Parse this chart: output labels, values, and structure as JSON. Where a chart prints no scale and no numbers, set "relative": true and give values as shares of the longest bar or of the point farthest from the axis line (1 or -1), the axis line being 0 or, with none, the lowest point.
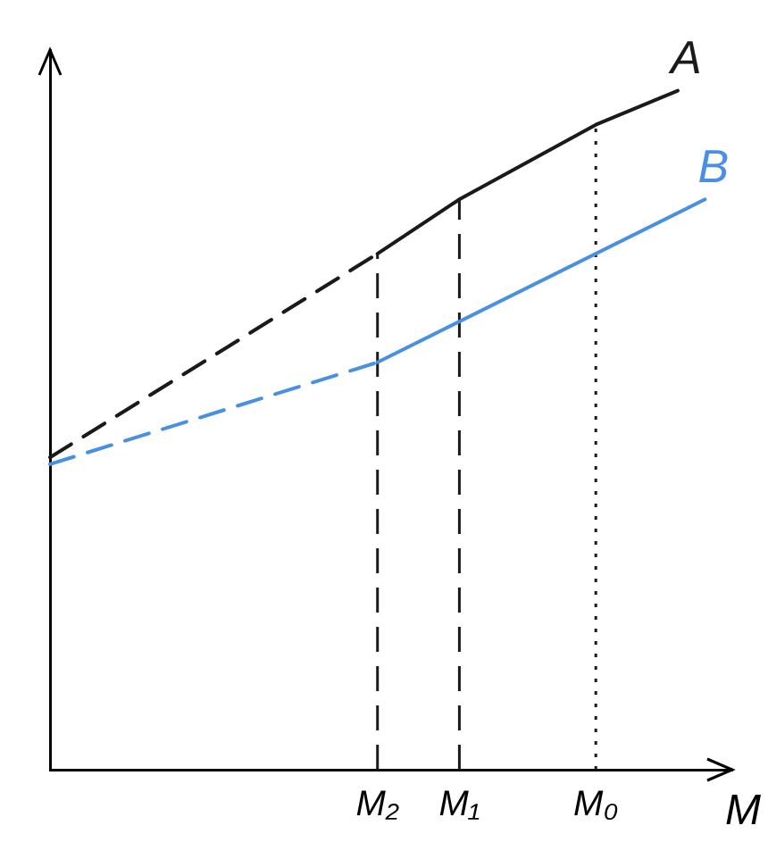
{
  "chart_data": {
    "type": "line",
    "relative": true,
    "xlabel": "M",
    "categories": [
      null,
      null,
      null,
      null,
      null,
      null,
      null,
      null,
      null,
      null,
      null,
      null,
      "M₂",
      null,
      null,
      "M₁",
      null,
      null,
      null,
      null,
      "M₀",
      null,
      null,
      null,
      null,
      null
    ],
    "series": [
      {
        "color": "#1a1a1a",
        "line_style": "dashed",
        "values": [
          0.46,
          null,
          null,
          null,
          null,
          null,
          null,
          null,
          null,
          null,
          null,
          null,
          0.76,
          null,
          null,
          null,
          null,
          null,
          null,
          null,
          null,
          null,
          null,
          null,
          null,
          null
        ]
      },
      {
        "name": "A",
        "color": "#1a1a1a",
        "line_style": "solid",
        "values": [
          null,
          null,
          null,
          null,
          null,
          null,
          null,
          null,
          null,
          null,
          null,
          null,
          0.76,
          null,
          null,
          0.84,
          null,
          null,
          null,
          null,
          0.95,
          null,
          null,
          1,
          null,
          null
        ]
      },
      {
        "color": "#4a90e2",
        "line_style": "dashed",
        "values": [
          0.45,
          null,
          null,
          null,
          null,
          null,
          null,
          null,
          null,
          null,
          null,
          null,
          0.6,
          null,
          null,
          null,
          null,
          null,
          null,
          null,
          null,
          null,
          null,
          null,
          null,
          null
        ]
      },
      {
        "name": "B",
        "color": "#4a90e2",
        "line_style": "solid",
        "values": [
          null,
          null,
          null,
          null,
          null,
          null,
          null,
          null,
          null,
          null,
          null,
          null,
          0.6,
          null,
          null,
          null,
          null,
          null,
          null,
          null,
          null,
          null,
          null,
          null,
          0.84,
          null
        ]
      }
    ],
    "ref_lines": [
      {
        "axis": "x",
        "value": "M₂",
        "line_style": "dashed",
        "color": "#1a1a1a"
      },
      {
        "axis": "x",
        "value": "M₁",
        "line_style": "dashed",
        "color": "#1a1a1a"
      },
      {
        "axis": "x",
        "value": "M₀",
        "line_style": "dotted",
        "color": "#1a1a1a"
      }
    ],
    "grid": false,
    "legend": false,
    "marker": "none"
  }
}
